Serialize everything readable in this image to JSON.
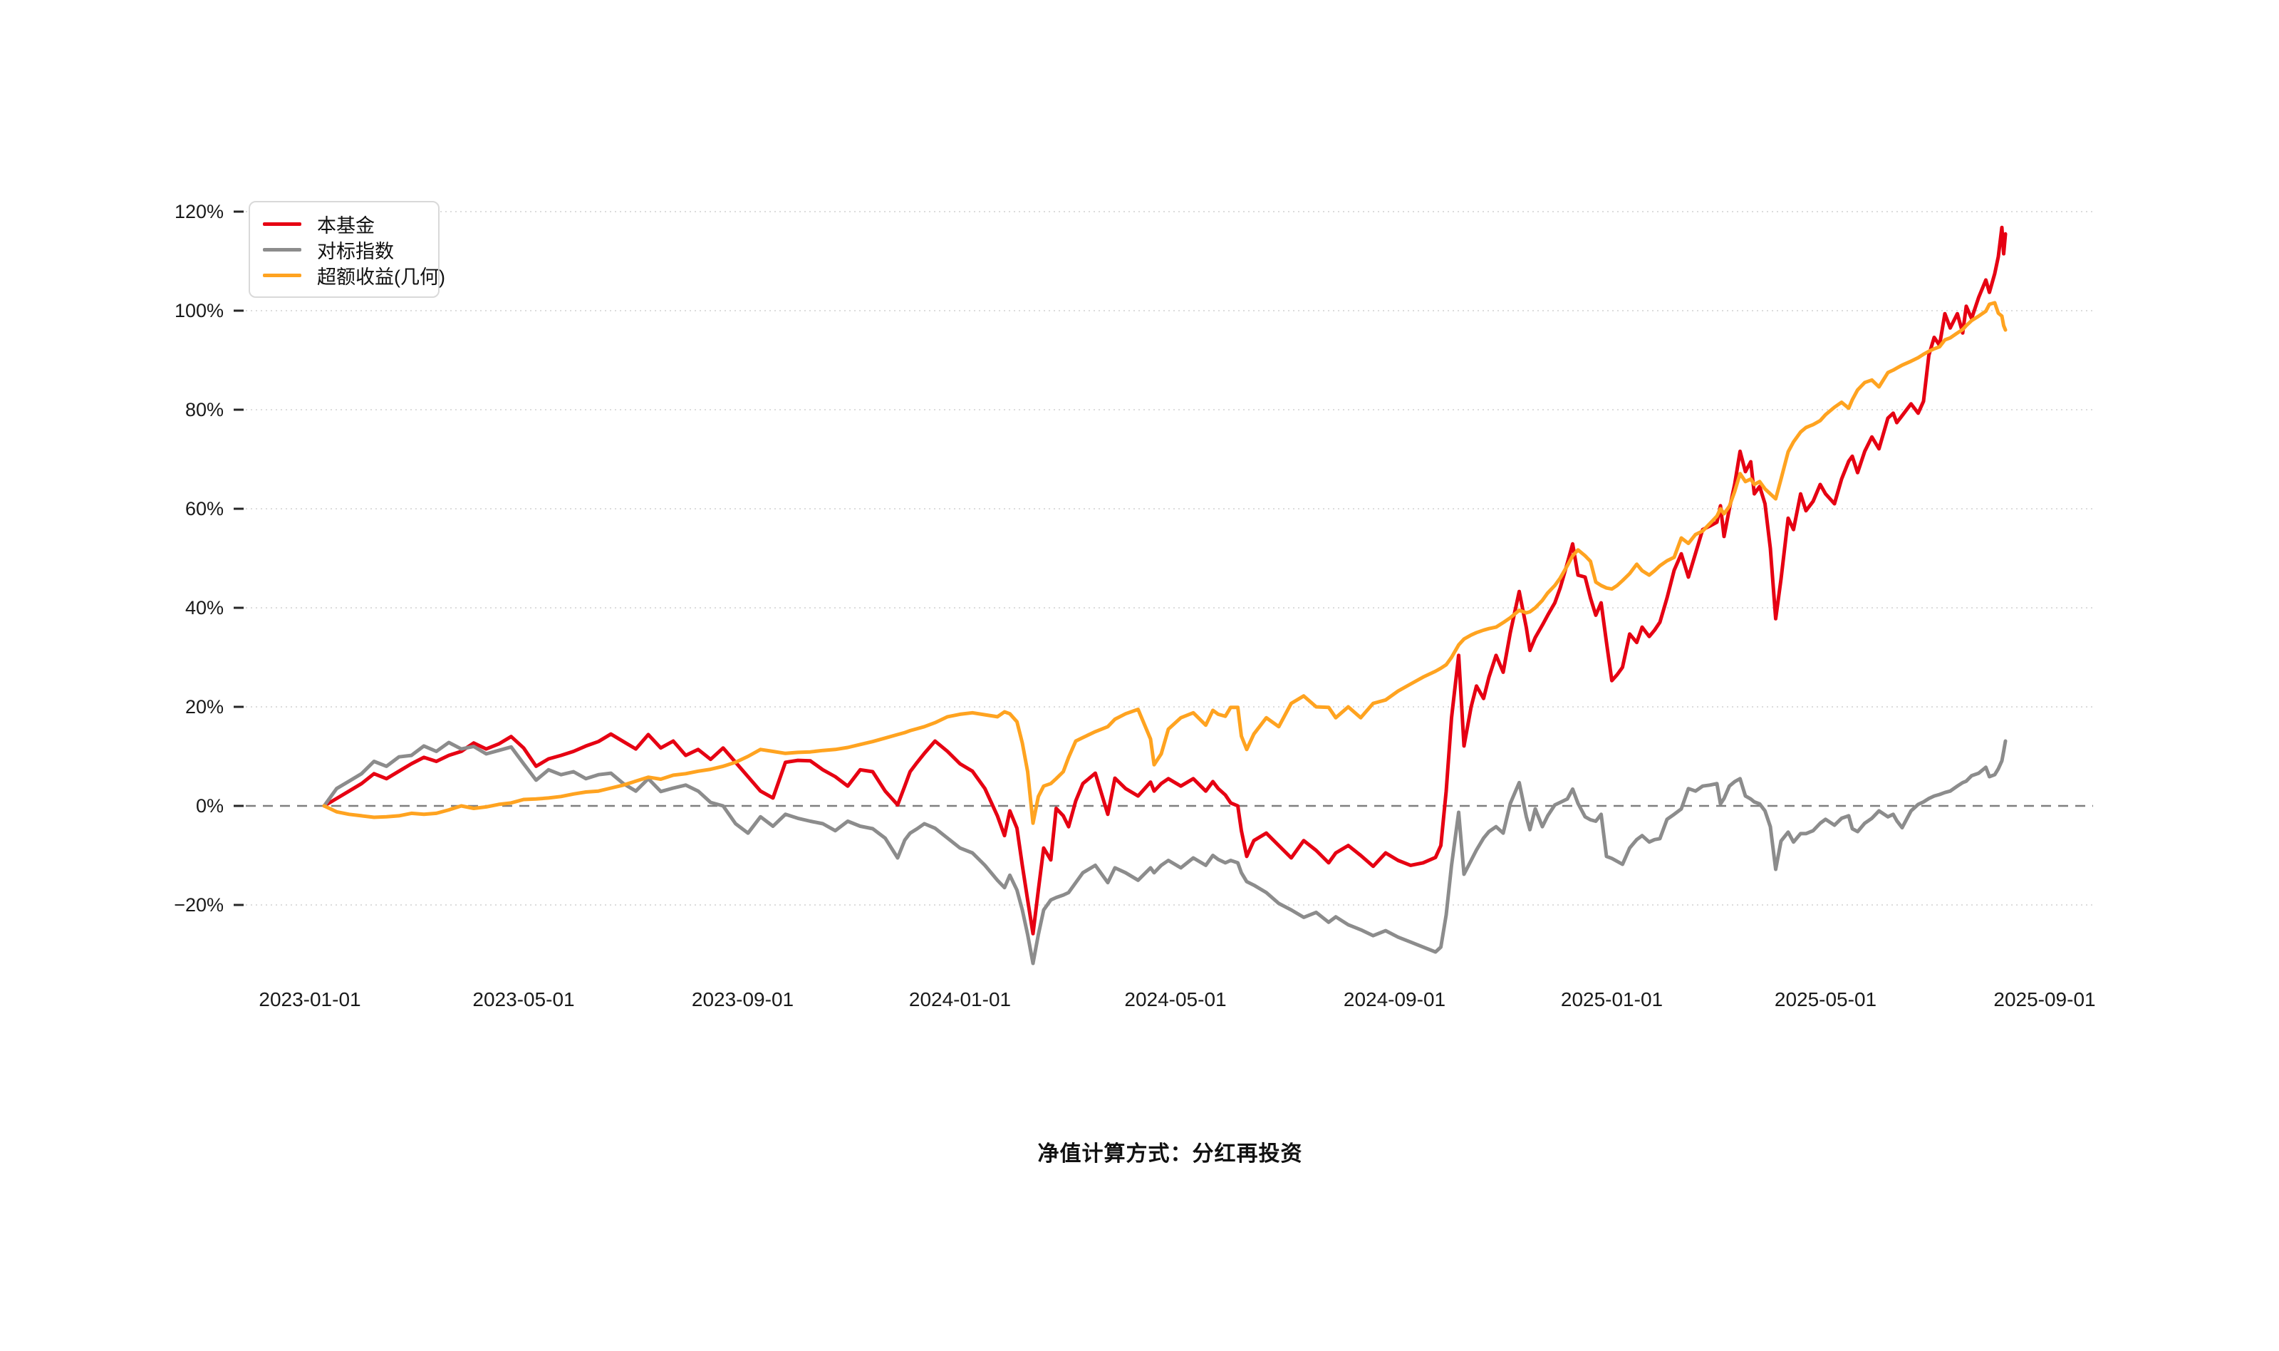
{
  "page": {
    "background": "#ffffff"
  },
  "caption": {
    "text": "净值计算方式：分红再投资"
  },
  "legend": {
    "position": "top-left",
    "items": [
      {
        "key": "fund",
        "label": "本基金",
        "color": "#e60012"
      },
      {
        "key": "benchmark",
        "label": "对标指数",
        "color": "#8c8c8c"
      },
      {
        "key": "excess",
        "label": "超额收益(几何)",
        "color": "#ffa320"
      }
    ]
  },
  "chart_data": {
    "type": "line",
    "title": "",
    "xlabel": "",
    "ylabel": "",
    "grid": true,
    "legend_position": "top-left",
    "ylim": [
      -20,
      120
    ],
    "y_unit": "%",
    "zero_line": {
      "value": 0,
      "style": "dashed",
      "color": "#7f7f7f"
    },
    "grid_color": "#dcdcdc",
    "axis_text_color": "#1a1a1a",
    "y_ticks": [
      {
        "label": "120%",
        "value": 120
      },
      {
        "label": "100%",
        "value": 100
      },
      {
        "label": "80%",
        "value": 80
      },
      {
        "label": "60%",
        "value": 60
      },
      {
        "label": "40%",
        "value": 40
      },
      {
        "label": "20%",
        "value": 20
      },
      {
        "label": "0%",
        "value": 0
      },
      {
        "label": "−20%",
        "value": -20
      }
    ],
    "x_ticks": [
      {
        "label": "2023-01-01",
        "day": 0
      },
      {
        "label": "2023-05-01",
        "day": 120
      },
      {
        "label": "2023-09-01",
        "day": 243
      },
      {
        "label": "2024-01-01",
        "day": 365
      },
      {
        "label": "2024-05-01",
        "day": 486
      },
      {
        "label": "2024-09-01",
        "day": 609
      },
      {
        "label": "2025-01-01",
        "day": 731
      },
      {
        "label": "2025-05-01",
        "day": 851
      },
      {
        "label": "2025-09-01",
        "day": 974
      }
    ],
    "x_unit": "days_since_2023-01-01",
    "x_days": [
      8,
      15,
      22,
      29,
      36,
      43,
      50,
      57,
      64,
      71,
      78,
      85,
      92,
      99,
      106,
      113,
      120,
      127,
      134,
      141,
      148,
      155,
      162,
      169,
      176,
      183,
      190,
      197,
      204,
      211,
      218,
      225,
      232,
      239,
      246,
      253,
      260,
      267,
      274,
      281,
      288,
      295,
      302,
      309,
      316,
      323,
      330,
      334,
      337,
      341,
      345,
      351,
      358,
      365,
      372,
      379,
      386,
      390,
      393,
      397,
      400,
      403,
      406,
      409,
      412,
      416,
      419,
      423,
      426,
      430,
      434,
      441,
      448,
      452,
      458,
      465,
      472,
      474,
      478,
      482,
      489,
      496,
      503,
      507,
      510,
      514,
      517,
      521,
      523,
      526,
      530,
      537,
      544,
      551,
      558,
      565,
      572,
      576,
      583,
      590,
      597,
      604,
      611,
      618,
      625,
      632,
      635,
      638,
      641,
      645,
      648,
      652,
      655,
      659,
      662,
      666,
      670,
      674,
      679,
      683,
      685,
      688,
      692,
      695,
      699,
      702,
      706,
      709,
      712,
      716,
      719,
      722,
      725,
      728,
      731,
      734,
      737,
      741,
      745,
      748,
      752,
      755,
      758,
      762,
      766,
      770,
      774,
      778,
      782,
      786,
      790,
      792,
      794,
      797,
      800,
      803,
      806,
      809,
      811,
      814,
      817,
      820,
      823,
      826,
      830,
      833,
      837,
      840,
      844,
      848,
      851,
      856,
      860,
      864,
      866,
      869,
      873,
      877,
      881,
      886,
      889,
      891,
      894,
      899,
      903,
      906,
      909,
      912,
      915,
      918,
      921,
      925,
      928,
      930,
      933,
      937,
      941,
      943,
      946,
      948,
      950,
      951,
      952
    ],
    "series": [
      {
        "key": "fund",
        "name": "本基金",
        "color": "#e60012",
        "values": [
          0,
          1.5,
          3.0,
          4.5,
          6.5,
          5.5,
          7.0,
          8.5,
          9.8,
          9.0,
          10.2,
          11.0,
          12.7,
          11.5,
          12.5,
          14.0,
          11.7,
          8.0,
          9.5,
          10.2,
          11.0,
          12.1,
          13.0,
          14.5,
          13.0,
          11.5,
          14.4,
          11.7,
          13.1,
          10.2,
          11.4,
          9.4,
          11.7,
          8.8,
          5.9,
          3.0,
          1.6,
          8.8,
          9.2,
          9.1,
          7.3,
          5.9,
          4.0,
          7.3,
          6.9,
          3.0,
          0.2,
          4.0,
          6.9,
          8.8,
          10.6,
          13.1,
          11.0,
          8.5,
          7.0,
          3.5,
          -2.0,
          -6.0,
          -1.0,
          -4.5,
          -12.0,
          -19.0,
          -25.8,
          -17.0,
          -8.5,
          -10.9,
          -0.5,
          -2.0,
          -4.2,
          1.0,
          4.5,
          6.6,
          -1.7,
          5.6,
          3.5,
          2.0,
          4.8,
          3.0,
          4.5,
          5.5,
          4.0,
          5.5,
          3.0,
          4.9,
          3.5,
          2.2,
          0.6,
          0.0,
          -5.0,
          -10.2,
          -7.0,
          -5.5,
          -8.0,
          -10.5,
          -7.0,
          -9.0,
          -11.5,
          -9.5,
          -8.0,
          -10.0,
          -12.2,
          -9.5,
          -11.0,
          -12.0,
          -11.5,
          -10.4,
          -8.0,
          3.0,
          17.8,
          30.4,
          12.1,
          20.0,
          24.2,
          21.7,
          26.0,
          30.4,
          27.0,
          35.0,
          43.3,
          36.0,
          31.4,
          34.0,
          36.5,
          38.5,
          41.0,
          44.0,
          49.0,
          52.9,
          46.6,
          46.2,
          42.0,
          38.5,
          41.0,
          33.0,
          25.3,
          26.5,
          28.0,
          34.7,
          33.0,
          36.1,
          34.2,
          35.5,
          37.1,
          42.0,
          47.6,
          50.9,
          46.2,
          51.0,
          55.8,
          56.5,
          57.3,
          60.6,
          54.4,
          60.0,
          65.0,
          71.6,
          67.5,
          69.5,
          63.0,
          64.5,
          61.0,
          52.0,
          37.8,
          45.8,
          58.1,
          55.8,
          63.0,
          59.6,
          61.5,
          64.9,
          63.0,
          61.0,
          66.0,
          69.6,
          70.6,
          67.3,
          71.6,
          74.5,
          72.1,
          78.3,
          79.3,
          77.4,
          78.8,
          81.2,
          79.3,
          81.7,
          91.0,
          94.6,
          93.0,
          99.4,
          96.5,
          99.4,
          95.5,
          100.9,
          98.4,
          102.7,
          106.2,
          103.7,
          107.5,
          110.9,
          116.8,
          111.5,
          115.5
        ]
      },
      {
        "key": "benchmark",
        "name": "对标指数",
        "color": "#8c8c8c",
        "values": [
          0,
          3.5,
          5.0,
          6.5,
          9.0,
          8.0,
          9.9,
          10.2,
          12.1,
          11.0,
          12.8,
          11.5,
          12.0,
          10.5,
          11.2,
          11.9,
          8.5,
          5.2,
          7.3,
          6.3,
          6.9,
          5.5,
          6.3,
          6.6,
          4.5,
          3.0,
          5.5,
          2.9,
          3.6,
          4.2,
          3.0,
          0.7,
          0.0,
          -3.6,
          -5.5,
          -2.2,
          -4.1,
          -1.7,
          -2.5,
          -3.1,
          -3.6,
          -5.0,
          -3.1,
          -4.1,
          -4.6,
          -6.5,
          -10.5,
          -6.9,
          -5.5,
          -4.6,
          -3.6,
          -4.5,
          -6.5,
          -8.5,
          -9.5,
          -12.0,
          -15.0,
          -16.5,
          -14.0,
          -17.0,
          -21.0,
          -26.0,
          -31.8,
          -26.0,
          -21.0,
          -19.0,
          -18.5,
          -18.0,
          -17.5,
          -15.5,
          -13.5,
          -12.0,
          -15.5,
          -12.5,
          -13.5,
          -15.0,
          -12.5,
          -13.5,
          -12.0,
          -11.0,
          -12.5,
          -10.5,
          -12.0,
          -10.0,
          -10.8,
          -11.5,
          -11.0,
          -11.5,
          -13.5,
          -15.3,
          -16.0,
          -17.5,
          -19.7,
          -21.0,
          -22.5,
          -21.5,
          -23.5,
          -22.4,
          -24.0,
          -25.0,
          -26.2,
          -25.2,
          -26.5,
          -27.5,
          -28.5,
          -29.5,
          -28.5,
          -22.0,
          -12.0,
          -1.3,
          -13.8,
          -11.0,
          -8.9,
          -6.5,
          -5.2,
          -4.2,
          -5.5,
          0.5,
          4.7,
          -2.2,
          -4.8,
          -0.6,
          -4.2,
          -2.0,
          0.2,
          0.7,
          1.4,
          3.4,
          0.5,
          -2.2,
          -2.8,
          -3.1,
          -1.7,
          -10.2,
          -10.6,
          -11.2,
          -11.8,
          -8.5,
          -6.8,
          -6.0,
          -7.3,
          -6.8,
          -6.6,
          -2.7,
          -1.7,
          -0.6,
          3.5,
          3.0,
          4.0,
          4.2,
          4.5,
          0.4,
          1.5,
          4.0,
          4.9,
          5.5,
          2.0,
          1.4,
          0.8,
          0.4,
          -1.0,
          -4.2,
          -12.8,
          -7.1,
          -5.3,
          -7.3,
          -5.6,
          -5.6,
          -5.0,
          -3.5,
          -2.7,
          -3.9,
          -2.5,
          -2.0,
          -4.6,
          -5.2,
          -3.5,
          -2.5,
          -1.0,
          -2.2,
          -1.7,
          -3.0,
          -4.4,
          -1.0,
          0.3,
          0.8,
          1.5,
          2.0,
          2.3,
          2.7,
          3.0,
          4.0,
          4.7,
          5.0,
          6.1,
          6.6,
          7.8,
          5.9,
          6.3,
          7.5,
          9.1,
          11.0,
          13.1
        ]
      },
      {
        "key": "excess",
        "name": "超额收益(几何)",
        "color": "#ffa320",
        "values": [
          0,
          -1.2,
          -1.7,
          -2.0,
          -2.3,
          -2.2,
          -2.0,
          -1.5,
          -1.7,
          -1.5,
          -0.8,
          0.0,
          -0.5,
          -0.2,
          0.3,
          0.6,
          1.3,
          1.4,
          1.6,
          1.9,
          2.4,
          2.8,
          3.0,
          3.6,
          4.2,
          5.0,
          5.8,
          5.4,
          6.2,
          6.5,
          7.0,
          7.4,
          8.0,
          8.8,
          10.0,
          11.4,
          11.0,
          10.6,
          10.8,
          10.9,
          11.2,
          11.4,
          11.8,
          12.4,
          13.0,
          13.7,
          14.4,
          14.8,
          15.2,
          15.6,
          16.0,
          16.8,
          18.0,
          18.5,
          18.8,
          18.4,
          18.0,
          19.0,
          18.6,
          17.0,
          12.7,
          6.9,
          -3.5,
          1.9,
          4.0,
          4.5,
          5.5,
          6.9,
          9.8,
          13.1,
          13.8,
          15.0,
          16.0,
          17.5,
          18.6,
          19.5,
          13.5,
          8.3,
          10.5,
          15.5,
          17.8,
          18.8,
          16.3,
          19.3,
          18.5,
          18.1,
          19.9,
          19.9,
          14.1,
          11.4,
          14.5,
          17.8,
          16.0,
          20.7,
          22.2,
          20.0,
          19.9,
          17.8,
          20.0,
          17.8,
          20.7,
          21.4,
          23.2,
          24.6,
          26.0,
          27.2,
          27.8,
          28.5,
          30.0,
          32.5,
          33.7,
          34.5,
          35.0,
          35.5,
          35.8,
          36.1,
          37.0,
          38.0,
          39.5,
          39.0,
          39.2,
          40.0,
          41.5,
          43.0,
          44.5,
          46.0,
          48.5,
          50.5,
          51.7,
          50.5,
          49.4,
          45.2,
          44.5,
          44.0,
          43.8,
          44.5,
          45.5,
          46.9,
          48.8,
          47.5,
          46.6,
          47.5,
          48.5,
          49.5,
          50.2,
          54.1,
          53.0,
          54.8,
          55.5,
          57.0,
          58.5,
          60.0,
          59.0,
          60.5,
          63.5,
          67.1,
          65.5,
          66.0,
          64.9,
          65.5,
          64.0,
          63.0,
          62.0,
          66.0,
          71.5,
          73.5,
          75.5,
          76.4,
          77.0,
          77.8,
          79.0,
          80.5,
          81.5,
          80.3,
          82.0,
          84.0,
          85.5,
          86.0,
          84.6,
          87.5,
          88.0,
          88.4,
          89.0,
          89.8,
          90.5,
          91.2,
          91.8,
          92.3,
          92.7,
          94.1,
          94.5,
          95.5,
          96.2,
          97.0,
          98.0,
          98.9,
          99.9,
          101.3,
          101.6,
          99.5,
          98.9,
          97.0,
          96.1
        ]
      }
    ]
  }
}
